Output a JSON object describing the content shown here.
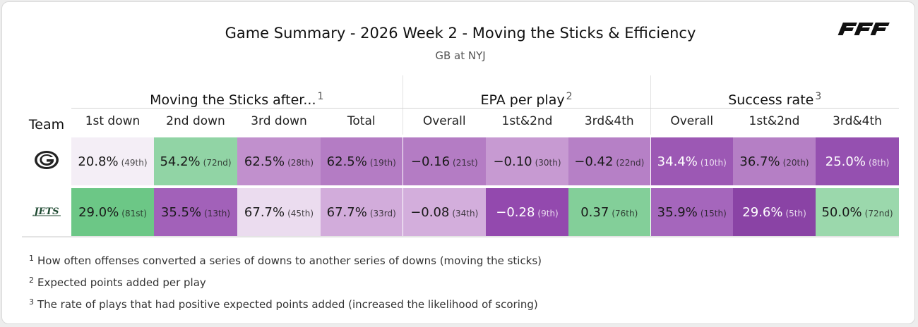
{
  "title": "Game Summary - 2026 Week 2 - Moving the Sticks & Efficiency",
  "subtitle": "GB at NYJ",
  "brand_logo": "PFF",
  "groups": [
    {
      "label": "Moving the Sticks after...",
      "note": "1"
    },
    {
      "label": "EPA per play",
      "note": "2"
    },
    {
      "label": "Success rate",
      "note": "3"
    }
  ],
  "columns": {
    "team": "Team",
    "sticks": [
      "1st down",
      "2nd down",
      "3rd down",
      "Total"
    ],
    "epa": [
      "Overall",
      "1st&2nd",
      "3rd&4th"
    ],
    "success": [
      "Overall",
      "1st&2nd",
      "3rd&4th"
    ]
  },
  "teams": [
    {
      "name": "Green Bay Packers",
      "logo_icon": "packers-g-logo-icon",
      "cells": [
        {
          "value": "20.8%",
          "rank": "(49th)",
          "color": "#f4eef6",
          "dark": false
        },
        {
          "value": "54.2%",
          "rank": "(72nd)",
          "color": "#91d4a5",
          "dark": false
        },
        {
          "value": "62.5%",
          "rank": "(28th)",
          "color": "#c190cd",
          "dark": false
        },
        {
          "value": "62.5%",
          "rank": "(19th)",
          "color": "#b47cc4",
          "dark": false
        },
        {
          "value": "−0.16",
          "rank": "(21st)",
          "color": "#b47cc4",
          "dark": false
        },
        {
          "value": "−0.10",
          "rank": "(30th)",
          "color": "#c79ad2",
          "dark": false
        },
        {
          "value": "−0.42",
          "rank": "(22nd)",
          "color": "#b680c6",
          "dark": false
        },
        {
          "value": "34.4%",
          "rank": "(10th)",
          "color": "#9c58b4",
          "dark": true
        },
        {
          "value": "36.7%",
          "rank": "(20th)",
          "color": "#b57fc5",
          "dark": false
        },
        {
          "value": "25.0%",
          "rank": "(8th)",
          "color": "#9550b0",
          "dark": true
        }
      ]
    },
    {
      "name": "New York Jets",
      "logo_icon": "jets-wordmark-logo-icon",
      "logo_text": "JETS",
      "cells": [
        {
          "value": "29.0%",
          "rank": "(81st)",
          "color": "#6cc786",
          "dark": false
        },
        {
          "value": "35.5%",
          "rank": "(13th)",
          "color": "#a261b9",
          "dark": false
        },
        {
          "value": "67.7%",
          "rank": "(45th)",
          "color": "#ebdcef",
          "dark": false
        },
        {
          "value": "67.7%",
          "rank": "(33rd)",
          "color": "#d2acdb",
          "dark": false
        },
        {
          "value": "−0.08",
          "rank": "(34th)",
          "color": "#d3aedc",
          "dark": false
        },
        {
          "value": "−0.28",
          "rank": "(9th)",
          "color": "#9349ae",
          "dark": true
        },
        {
          "value": "0.37",
          "rank": "(76th)",
          "color": "#83cf99",
          "dark": false
        },
        {
          "value": "35.9%",
          "rank": "(15th)",
          "color": "#a566bc",
          "dark": false
        },
        {
          "value": "29.6%",
          "rank": "(5th)",
          "color": "#8a43a5",
          "dark": true
        },
        {
          "value": "50.0%",
          "rank": "(72nd)",
          "color": "#9bd8ac",
          "dark": false
        }
      ]
    }
  ],
  "footnotes": [
    {
      "num": "1",
      "text": "How often offenses converted a series of downs to another series of downs (moving the sticks)"
    },
    {
      "num": "2",
      "text": "Expected points added per play"
    },
    {
      "num": "3",
      "text": "The rate of plays that had positive expected points added (increased the likelihood of scoring)"
    }
  ]
}
